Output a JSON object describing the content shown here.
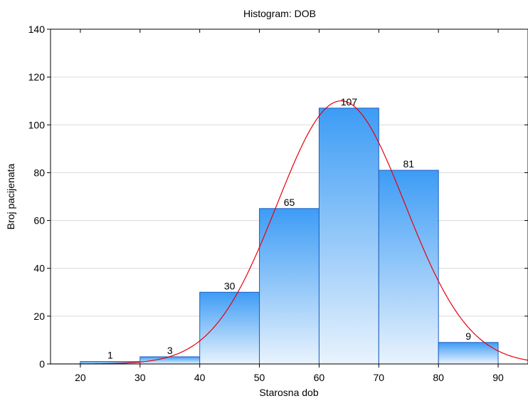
{
  "chart_data": {
    "type": "bar",
    "title": "Histogram: DOB",
    "xlabel": "Starosna dob",
    "ylabel": "Broj pacijenata",
    "bins": [
      [
        20,
        30
      ],
      [
        30,
        40
      ],
      [
        40,
        50
      ],
      [
        50,
        60
      ],
      [
        60,
        70
      ],
      [
        70,
        80
      ],
      [
        80,
        90
      ]
    ],
    "values": [
      1,
      3,
      30,
      65,
      107,
      81,
      9
    ],
    "xlim": [
      15,
      95
    ],
    "ylim": [
      0,
      140
    ],
    "xticks": [
      20,
      30,
      40,
      50,
      60,
      70,
      80,
      90
    ],
    "yticks": [
      0,
      20,
      40,
      60,
      80,
      100,
      120,
      140
    ],
    "grid": true,
    "legend": "none",
    "fit_curve": {
      "type": "normal",
      "color": "#e8000b"
    },
    "colors": {
      "bar_top": "#3d9cf5",
      "bar_bottom": "#e9f3fd",
      "bar_edge": "#1f5fbf",
      "gridline": "#d9d9d9"
    }
  }
}
